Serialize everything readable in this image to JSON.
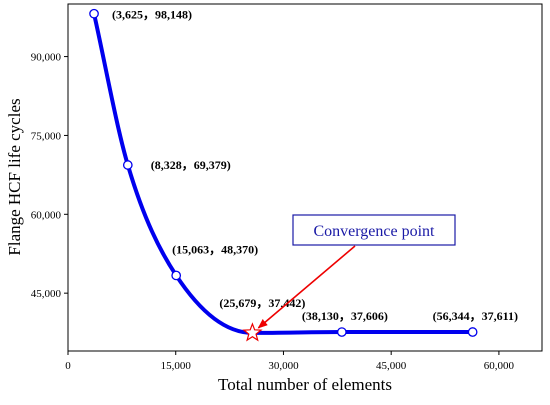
{
  "chart_data": {
    "type": "line",
    "title": "",
    "xlabel": "Total number of elements",
    "ylabel": "Flange HCF life cycles",
    "xlim": [
      0,
      66000
    ],
    "ylim": [
      34000,
      100000
    ],
    "x_ticks": [
      0,
      15000,
      30000,
      45000,
      60000
    ],
    "x_tick_labels": [
      "0",
      "15,000",
      "30,000",
      "45,000",
      "60,000"
    ],
    "y_ticks": [
      45000,
      60000,
      75000,
      90000
    ],
    "y_tick_labels": [
      "45,000",
      "60,000",
      "75,000",
      "90,000"
    ],
    "grid": false,
    "series": [
      {
        "color": "#0000ee",
        "points": [
          {
            "x": 3625,
            "y": 98148,
            "label": "(3,625，98,148)",
            "marker": "circle"
          },
          {
            "x": 8328,
            "y": 69379,
            "label": "(8,328，69,379)",
            "marker": "circle"
          },
          {
            "x": 15063,
            "y": 48370,
            "label": "(15,063，48,370)",
            "marker": "circle"
          },
          {
            "x": 25679,
            "y": 37442,
            "label": "(25,679，37,442)",
            "marker": "star"
          },
          {
            "x": 38130,
            "y": 37606,
            "label": "(38,130，37,606)",
            "marker": "circle"
          },
          {
            "x": 56344,
            "y": 37611,
            "label": "(56,344，37,611)",
            "marker": "circle"
          }
        ]
      }
    ],
    "annotation": {
      "text": "Convergence point",
      "arrow_target": {
        "x": 25679,
        "y": 37442
      },
      "arrow_color": "#ee0000"
    }
  }
}
